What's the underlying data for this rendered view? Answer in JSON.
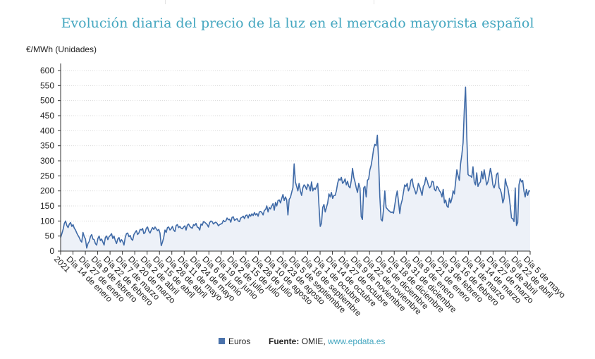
{
  "title": "Evolución diaria del precio de la luz en el mercado mayorista español",
  "legend": {
    "series_name": "Euros",
    "source_label": "Fuente:",
    "source_text": "OMIE,",
    "source_link": "www.epdata.es"
  },
  "colors": {
    "title": "#45a7c0",
    "line": "#3f6aa7",
    "area": "#edf1f8",
    "grid": "#d9d9d9"
  },
  "chart_data": {
    "type": "area",
    "title": "Evolución diaria del precio de la luz en el mercado mayorista español",
    "ylabel": "€/MWh (Unidades)",
    "ylim": [
      0,
      600
    ],
    "yticks": [
      0,
      50,
      100,
      150,
      200,
      250,
      300,
      350,
      400,
      450,
      500,
      550,
      600
    ],
    "grid": true,
    "legend_position": "bottom",
    "xticks": [
      "2021",
      "Día 14 de enero",
      "Día 27 de enero",
      "Día 9 de febrero",
      "Día 22 de febrero",
      "Día 7 de marzo",
      "Día 20 de marzo",
      "Día 2 de abril",
      "Día 15 de abril",
      "Día 28 de abril",
      "Día 11 de mayo",
      "Día 24 de mayo",
      "Día 6 de junio",
      "Día 19 de junio",
      "Día 2 de julio",
      "Día 15 de julio",
      "Día 28 de julio",
      "Día 10 de agosto",
      "Día 23 de agosto",
      "Día 5 de septiembre",
      "Día 18 de septiembre",
      "Día 1 de octubre",
      "Día 14 de octubre",
      "Día 27 de octubre",
      "Día 9 de noviembre",
      "Día 22 de noviembre",
      "Día 5 de diciembre",
      "Día 18 de diciembre",
      "Día 31 de diciembre",
      "Día 8 de enero",
      "Día 21 de enero",
      "Día 3 de febrero",
      "Día 16 de febrero",
      "Día 1 de marzo",
      "Día 14 de marzo",
      "Día 27 de marzo",
      "Día 9 de abril",
      "Día 22 de abril",
      "Día 5 de mayo"
    ],
    "series": [
      {
        "name": "Euros",
        "values": [
          45,
          58,
          72,
          92,
          100,
          85,
          78,
          90,
          95,
          82,
          88,
          76,
          70,
          60,
          52,
          45,
          35,
          30,
          62,
          48,
          40,
          10,
          25,
          32,
          48,
          55,
          40,
          38,
          25,
          20,
          42,
          50,
          35,
          40,
          30,
          20,
          45,
          50,
          38,
          48,
          52,
          58,
          42,
          50,
          35,
          25,
          40,
          45,
          30,
          38,
          32,
          20,
          45,
          58,
          60,
          48,
          52,
          40,
          36,
          55,
          62,
          68,
          55,
          60,
          72,
          70,
          75,
          58,
          62,
          76,
          80,
          66,
          60,
          70,
          78,
          72,
          80,
          74,
          68,
          72,
          60,
          18,
          30,
          45,
          70,
          62,
          78,
          80,
          70,
          74,
          82,
          70,
          65,
          85,
          88,
          78,
          82,
          76,
          74,
          80,
          84,
          70,
          86,
          90,
          82,
          78,
          76,
          88,
          85,
          92,
          80,
          78,
          70,
          90,
          86,
          98,
          96,
          92,
          88,
          80,
          95,
          100,
          98,
          90,
          94,
          96,
          92,
          84,
          88,
          90,
          92,
          102,
          98,
          100,
          110,
          104,
          106,
          96,
          112,
          114,
          102,
          105,
          108,
          100,
          98,
          110,
          112,
          116,
          108,
          118,
          120,
          110,
          122,
          116,
          124,
          118,
          128,
          120,
          125,
          116,
          130,
          132,
          128,
          120,
          135,
          138,
          150,
          130,
          145,
          140,
          150,
          158,
          136,
          162,
          150,
          168,
          170,
          160,
          175,
          188,
          168,
          180,
          170,
          120,
          172,
          178,
          195,
          210,
          290,
          230,
          215,
          200,
          225,
          200,
          185,
          210,
          220,
          215,
          205,
          222,
          215,
          200,
          230,
          200,
          210,
          205,
          215,
          225,
          150,
          82,
          92,
          145,
          155,
          130,
          145,
          160,
          190,
          180,
          195,
          175,
          185,
          185,
          200,
          225,
          240,
          235,
          245,
          225,
          230,
          240,
          220,
          232,
          215,
          210,
          235,
          275,
          245,
          230,
          210,
          195,
          225,
          210,
          115,
          105,
          210,
          215,
          180,
          235,
          240,
          270,
          285,
          310,
          340,
          355,
          350,
          385,
          300,
          180,
          105,
          100,
          140,
          200,
          145,
          140,
          135,
          132,
          128,
          130,
          126,
          152,
          180,
          200,
          165,
          125,
          155,
          170,
          195,
          220,
          215,
          225,
          200,
          210,
          235,
          240,
          215,
          205,
          190,
          200,
          225,
          215,
          200,
          185,
          215,
          222,
          245,
          235,
          220,
          210,
          215,
          232,
          230,
          205,
          200,
          215,
          210,
          200,
          195,
          180,
          205,
          160,
          170,
          150,
          145,
          175,
          160,
          175,
          200,
          190,
          230,
          270,
          250,
          235,
          290,
          320,
          360,
          470,
          545,
          380,
          255,
          250,
          250,
          245,
          280,
          230,
          220,
          260,
          215,
          225,
          230,
          265,
          240,
          270,
          245,
          220,
          230,
          250,
          275,
          255,
          220,
          210,
          225,
          255,
          260,
          210,
          205,
          190,
          160,
          175,
          240,
          220,
          210,
          185,
          150,
          110,
          108,
          98,
          210,
          85,
          95,
          220,
          240,
          230,
          235,
          200,
          180,
          205,
          185,
          200,
          200
        ]
      }
    ]
  }
}
